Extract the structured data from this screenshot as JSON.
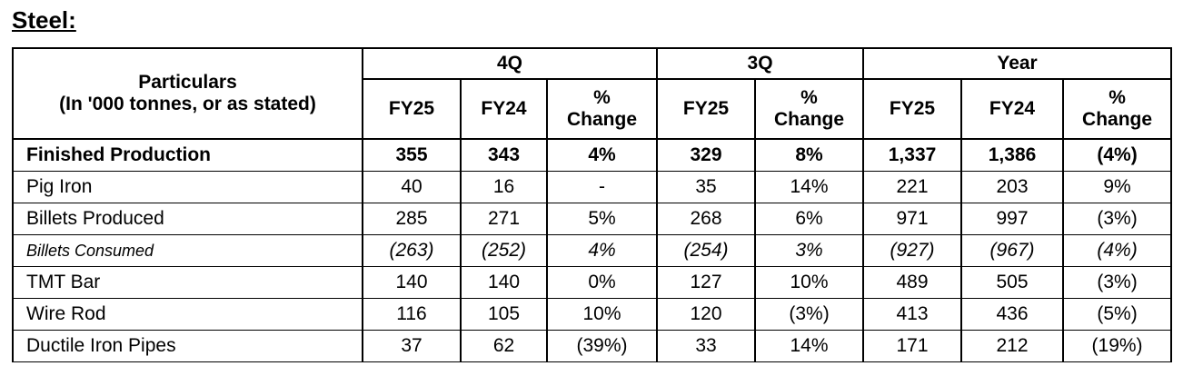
{
  "title": "Steel:",
  "table": {
    "particulars": [
      "Particulars",
      "(In '000 tonnes, or as stated)"
    ],
    "groups": [
      {
        "label": "4Q",
        "span": 3
      },
      {
        "label": "3Q",
        "span": 2
      },
      {
        "label": "Year",
        "span": 3
      }
    ],
    "subheaders": [
      "FY25",
      "FY24",
      "% Change",
      "FY25",
      "% Change",
      "FY25",
      "FY24",
      "% Change"
    ],
    "rows": [
      {
        "label": "Finished Production",
        "cells": [
          "355",
          "343",
          "4%",
          "329",
          "8%",
          "1,337",
          "1,386",
          "(4%)"
        ]
      },
      {
        "label": "Pig Iron",
        "cells": [
          "40",
          "16",
          "-",
          "35",
          "14%",
          "221",
          "203",
          "9%"
        ]
      },
      {
        "label": "Billets Produced",
        "cells": [
          "285",
          "271",
          "5%",
          "268",
          "6%",
          "971",
          "997",
          "(3%)"
        ]
      },
      {
        "label": "Billets Consumed",
        "cells": [
          "(263)",
          "(252)",
          "4%",
          "(254)",
          "3%",
          "(927)",
          "(967)",
          "(4%)"
        ]
      },
      {
        "label": "TMT Bar",
        "cells": [
          "140",
          "140",
          "0%",
          "127",
          "10%",
          "489",
          "505",
          "(3%)"
        ]
      },
      {
        "label": "Wire Rod",
        "cells": [
          "116",
          "105",
          "10%",
          "120",
          "(3%)",
          "413",
          "436",
          "(5%)"
        ]
      },
      {
        "label": "Ductile Iron Pipes",
        "cells": [
          "37",
          "62",
          "(39%)",
          "33",
          "14%",
          "171",
          "212",
          "(19%)"
        ]
      }
    ]
  }
}
